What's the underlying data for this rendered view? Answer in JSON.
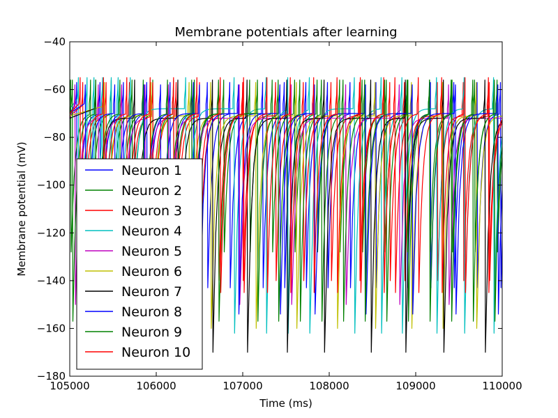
{
  "chart_data": {
    "type": "line",
    "title": "Membrane potentials after learning",
    "xlabel": "Time (ms)",
    "ylabel": "Membrane potential (mV)",
    "xlim": [
      105000,
      110000
    ],
    "ylim": [
      -180,
      -40
    ],
    "x_ticks": [
      105000,
      106000,
      107000,
      108000,
      109000,
      110000
    ],
    "x_tick_labels": [
      "105000",
      "106000",
      "107000",
      "108000",
      "109000",
      "110000"
    ],
    "y_ticks": [
      -180,
      -160,
      -140,
      -120,
      -100,
      -80,
      -60,
      -40
    ],
    "y_tick_labels": [
      "−180",
      "−160",
      "−140",
      "−120",
      "−100",
      "−80",
      "−60",
      "−40"
    ],
    "grid": false,
    "legend_position": "lower-left",
    "series": [
      {
        "name": "Neuron 1",
        "color": "#0000ff",
        "rest": -70,
        "peak": -57,
        "trough": -143,
        "spikes": [
          105080,
          105350,
          105620,
          105890,
          106160,
          106430,
          106590,
          106850,
          107230,
          107480,
          107730,
          107980,
          108240,
          108540,
          108900,
          109170,
          109440,
          109710,
          109980
        ]
      },
      {
        "name": "Neuron 2",
        "color": "#008000",
        "rest": -70,
        "peak": -56,
        "trough": -128,
        "spikes": [
          105010,
          105240,
          105480,
          105720,
          105960,
          106200,
          106440,
          106780,
          107080,
          107340,
          107600,
          107860,
          108120,
          108380,
          108640,
          108900,
          109160,
          109420,
          109680,
          109940
        ]
      },
      {
        "name": "Neuron 3",
        "color": "#ff0000",
        "rest": -71,
        "peak": -57,
        "trough": -140,
        "spikes": [
          105150,
          105420,
          105690,
          105960,
          106230,
          106500,
          106720,
          107000,
          107380,
          107700,
          108020,
          108350,
          108700,
          108870,
          109250,
          109550,
          109850
        ]
      },
      {
        "name": "Neuron 4",
        "color": "#00bfbf",
        "rest": -68,
        "peak": -55,
        "trough": -162,
        "spikes": [
          105100,
          105200,
          105280,
          105380,
          105480,
          105560,
          105700,
          106340,
          106900,
          107270,
          107520,
          107770,
          108290,
          108600,
          108840,
          109240,
          109560,
          109900
        ]
      },
      {
        "name": "Neuron 5",
        "color": "#bf00bf",
        "rest": -72,
        "peak": -58,
        "trough": -150,
        "spikes": [
          105060,
          105330,
          105600,
          105870,
          106140,
          106410,
          106960,
          107560,
          108190,
          108810,
          109380
        ]
      },
      {
        "name": "Neuron 6",
        "color": "#bfbf00",
        "rest": -71,
        "peak": -57,
        "trough": -160,
        "spikes": [
          105400,
          105940,
          106380,
          106630,
          107150,
          107620,
          108090,
          108530,
          108950,
          109310,
          109700
        ]
      },
      {
        "name": "Neuron 7",
        "color": "#000000",
        "rest": -72,
        "peak": -56,
        "trough": -170,
        "spikes": [
          105300,
          105750,
          106250,
          106650,
          107050,
          107510,
          107940,
          108480,
          108880,
          109320,
          109800
        ]
      },
      {
        "name": "Neuron 8",
        "color": "#0000ff",
        "rest": -70,
        "peak": -58,
        "trough": -154,
        "spikes": [
          105180,
          105520,
          105860,
          106050,
          106500,
          106950,
          107430,
          107830,
          108420,
          108960,
          109460,
          109950
        ]
      },
      {
        "name": "Neuron 9",
        "color": "#008000",
        "rest": -70,
        "peak": -56,
        "trough": -157,
        "spikes": [
          105030,
          105300,
          105580,
          105850,
          106130,
          106410,
          106720,
          107170,
          107410,
          107660,
          107910,
          108160,
          108410,
          108660,
          108910,
          109160,
          109410,
          109660,
          109910
        ]
      },
      {
        "name": "Neuron 10",
        "color": "#ff0000",
        "rest": -70,
        "peak": -55,
        "trough": -145,
        "spikes": [
          105120,
          105390,
          105660,
          105930,
          106200,
          106470,
          106740,
          107010,
          107280,
          107550,
          107820,
          108090,
          108360,
          108630,
          108760,
          109030,
          109300,
          109570,
          109840
        ]
      }
    ]
  }
}
